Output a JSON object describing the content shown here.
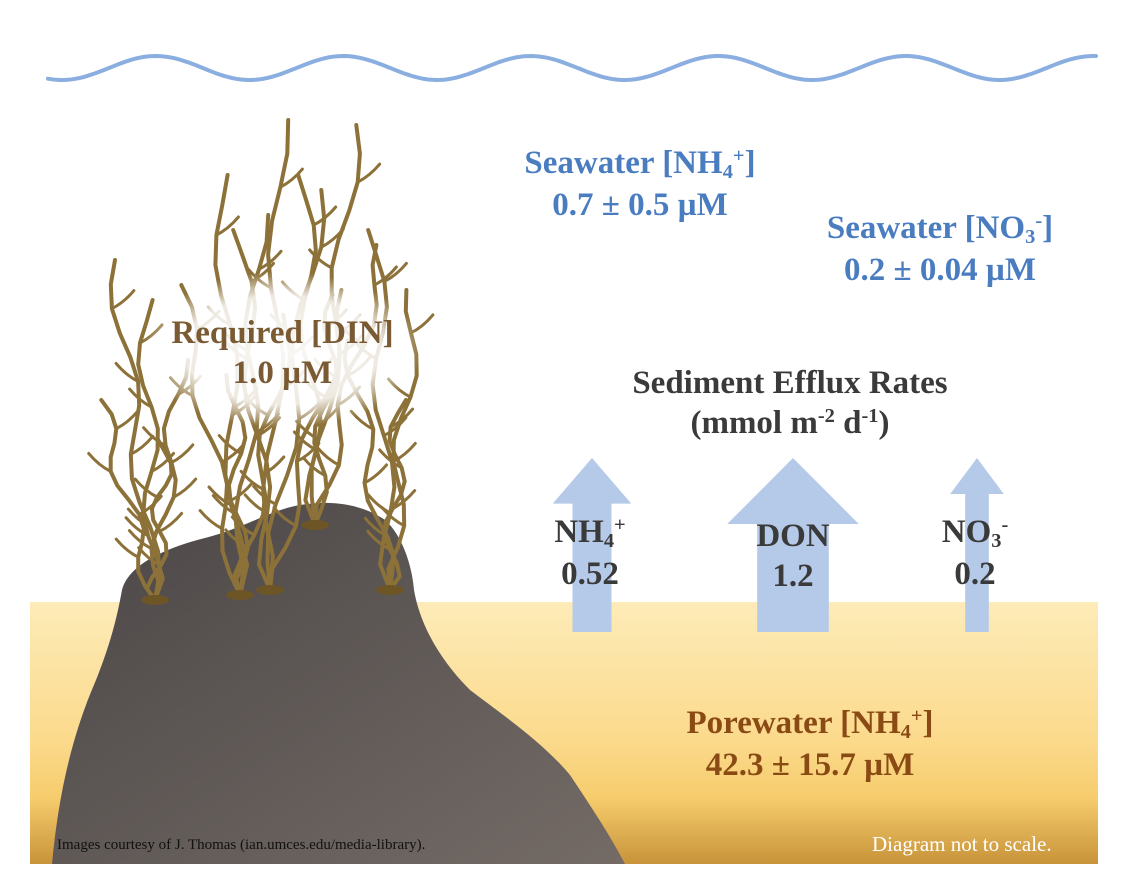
{
  "seawater_nh4": {
    "line1_pre": "Seawater [NH",
    "line1_sub": "4",
    "line1_sup": "+",
    "line1_post": "]",
    "line2": "0.7 ± 0.5 µM"
  },
  "seawater_no3": {
    "line1_pre": "Seawater [NO",
    "line1_sub": "3",
    "line1_sup": "-",
    "line1_post": "]",
    "line2": "0.2 ± 0.04 µM"
  },
  "required_din": {
    "line1": "Required [DIN]",
    "line2": "1.0 µM"
  },
  "efflux": {
    "title": "Sediment Efflux Rates",
    "units_pre": "(mmol m",
    "units_sup1": "-2",
    "units_mid": " d",
    "units_sup2": "-1",
    "units_post": ")"
  },
  "fluxes": [
    {
      "species_pre": "NH",
      "species_sub": "4",
      "species_sup": "+",
      "value": "0.52",
      "rate": 0.52
    },
    {
      "species_pre": "DON",
      "species_sub": "",
      "species_sup": "",
      "value": "1.2",
      "rate": 1.2
    },
    {
      "species_pre": "NO",
      "species_sub": "3",
      "species_sup": "-",
      "value": "0.2",
      "rate": 0.2
    }
  ],
  "porewater": {
    "line1_pre": "Porewater [NH",
    "line1_sub": "4",
    "line1_sup": "+",
    "line1_post": "]",
    "line2": "42.3 ± 15.7 µM"
  },
  "credit": "Images courtesy of J. Thomas (ian.umces.edu/media-library).",
  "scale_note": "Diagram not to scale.",
  "colors": {
    "wave": "#8aaee0",
    "arrow": "#b5c9e8",
    "rock": "#5c5755",
    "sediment_top": "#fde9b4",
    "sediment_bottom": "#d8a63e",
    "seagrass": "#8c7138",
    "seawater_text": "#4a7cc0",
    "porewater_text": "#8a4a14"
  }
}
